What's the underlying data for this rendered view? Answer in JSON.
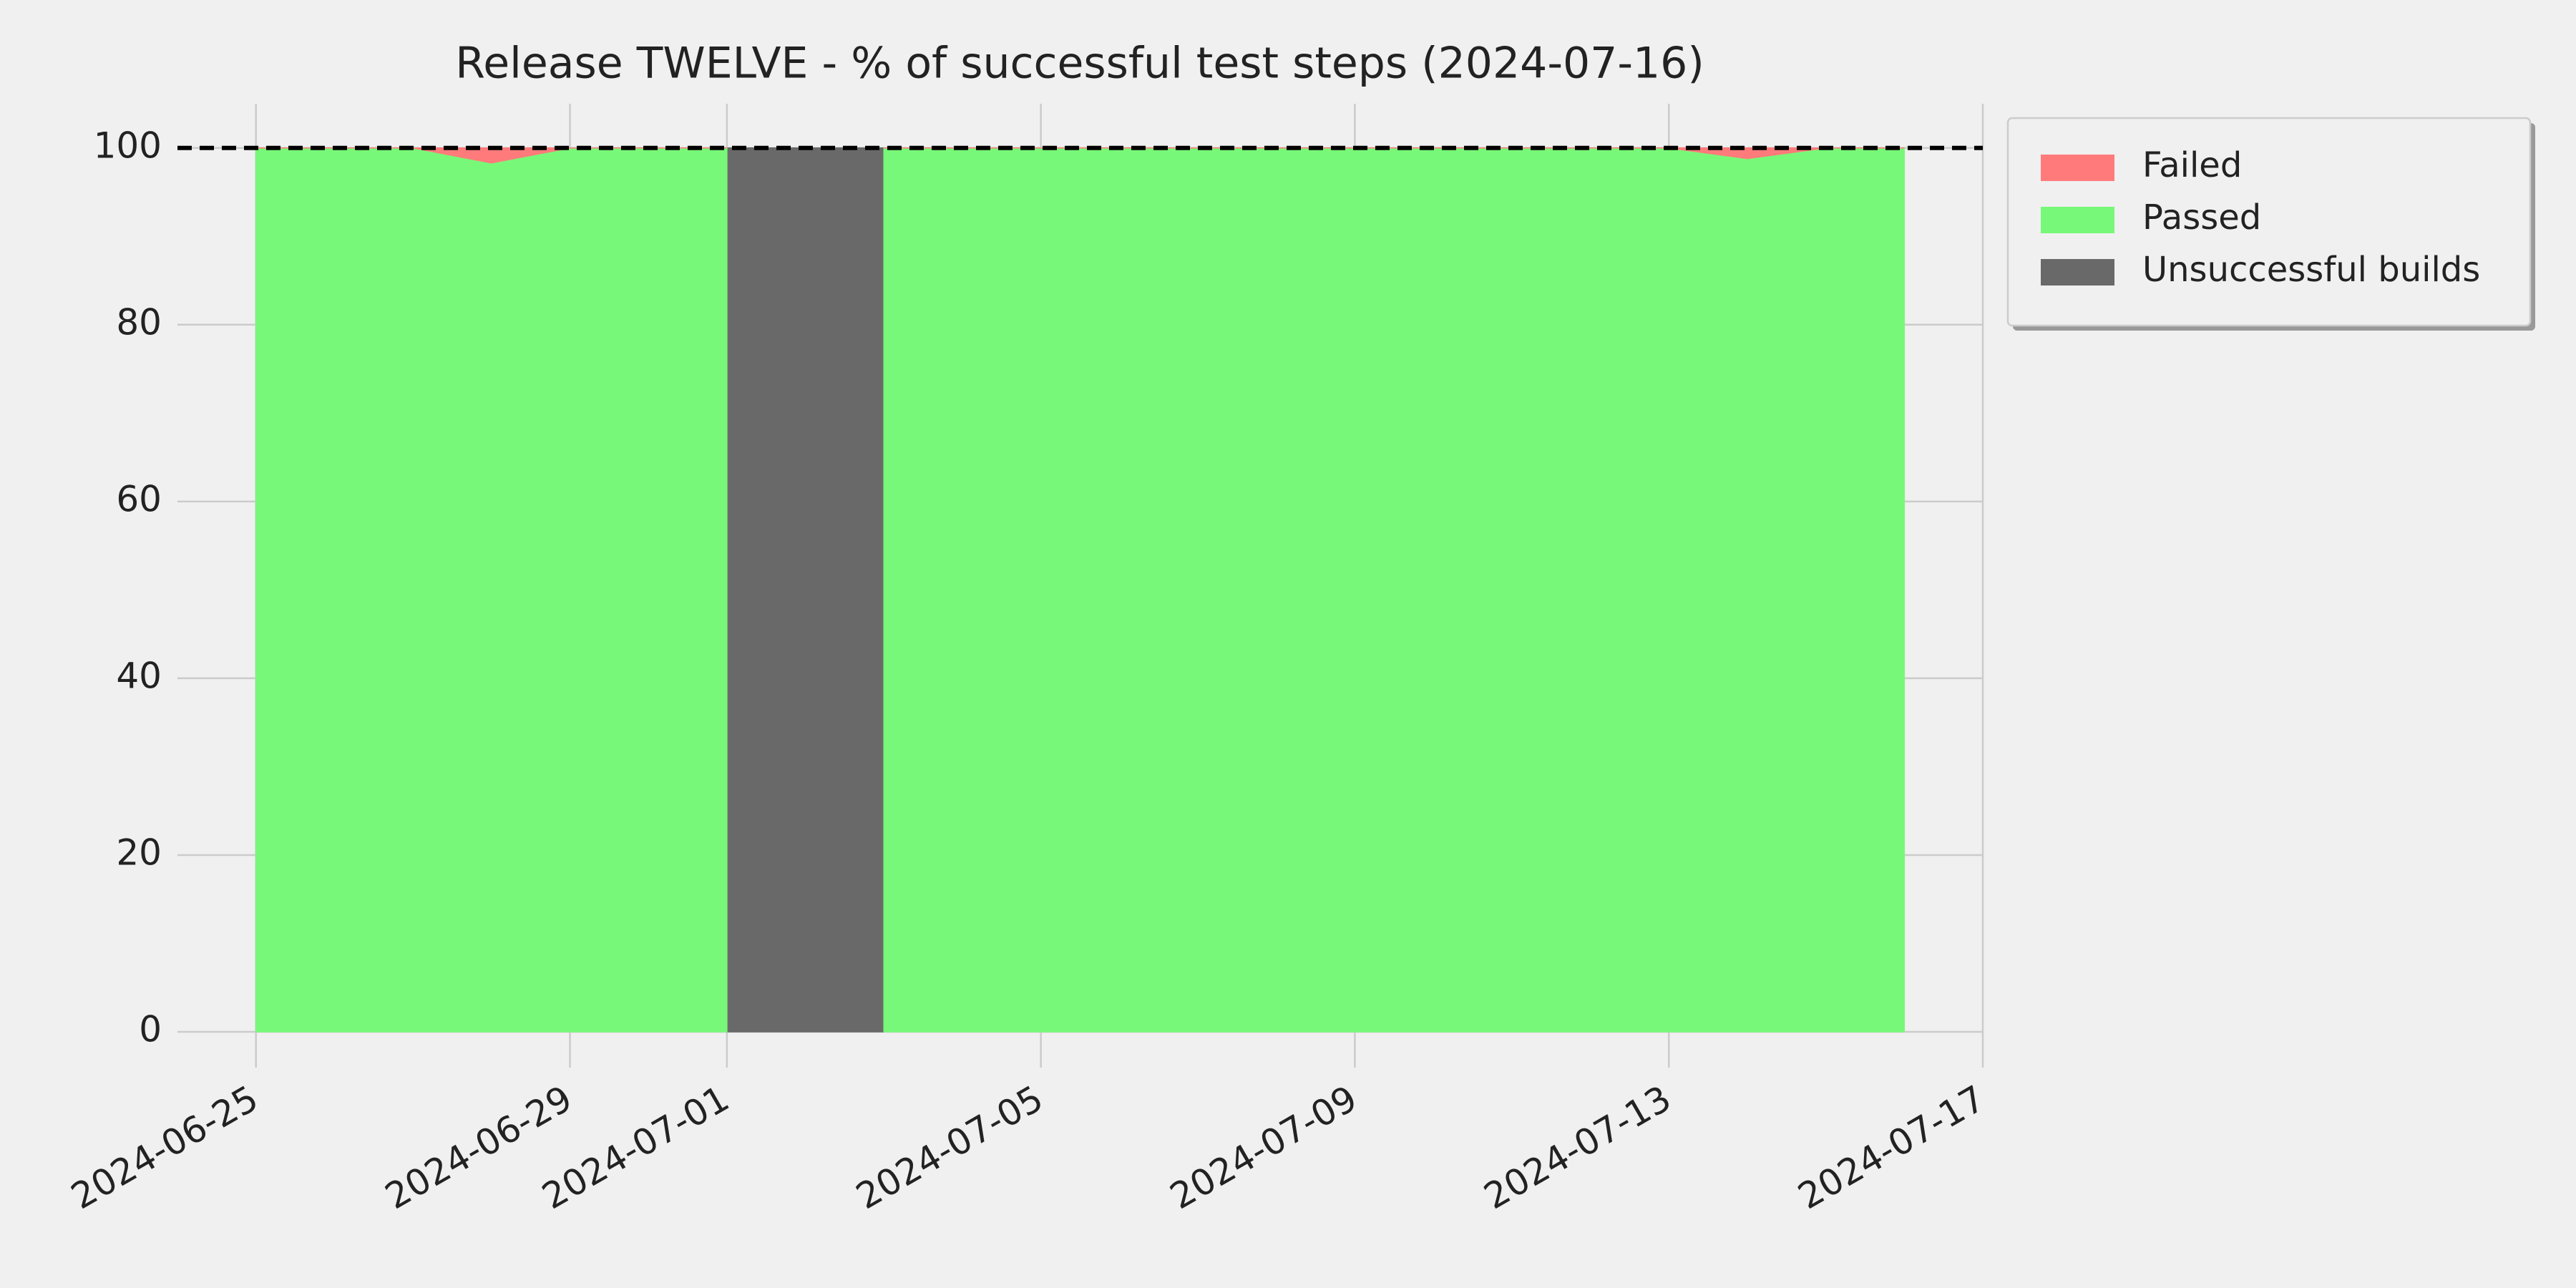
{
  "chart_data": {
    "type": "area",
    "title": "Release TWELVE - % of successful test steps (2024-07-16)",
    "x": [
      "2024-06-25",
      "2024-06-26",
      "2024-06-27",
      "2024-06-28",
      "2024-06-29",
      "2024-06-30",
      "2024-07-01",
      "2024-07-02",
      "2024-07-03",
      "2024-07-04",
      "2024-07-05",
      "2024-07-06",
      "2024-07-07",
      "2024-07-08",
      "2024-07-09",
      "2024-07-10",
      "2024-07-11",
      "2024-07-12",
      "2024-07-13",
      "2024-07-14",
      "2024-07-15",
      "2024-07-16"
    ],
    "series": [
      {
        "name": "Failed",
        "color": "#ff7b7b",
        "stacked": true,
        "values": [
          0,
          0,
          0,
          1.7,
          0,
          0,
          0,
          null,
          0,
          0,
          0,
          0,
          0,
          0,
          0,
          0,
          0,
          0,
          0,
          1.2,
          0,
          0
        ]
      },
      {
        "name": "Passed",
        "color": "#78f878",
        "values": [
          100,
          100,
          100,
          98.3,
          100,
          100,
          100,
          null,
          100,
          100,
          100,
          100,
          100,
          100,
          100,
          100,
          100,
          100,
          100,
          98.8,
          100,
          100
        ]
      },
      {
        "name": "Unsuccessful builds",
        "color": "#696969",
        "values": [
          null,
          null,
          null,
          null,
          null,
          null,
          100,
          100,
          100,
          null,
          null,
          null,
          null,
          null,
          null,
          null,
          null,
          null,
          null,
          null,
          null,
          null
        ]
      }
    ],
    "xlim": [
      "2024-06-24",
      "2024-07-17"
    ],
    "xticks": [
      "2024-06-25",
      "2024-06-29",
      "2024-07-01",
      "2024-07-05",
      "2024-07-09",
      "2024-07-13",
      "2024-07-17"
    ],
    "ylim": [
      0,
      105
    ],
    "yticks": [
      0,
      20,
      40,
      60,
      80,
      100
    ],
    "reference_line": 100,
    "grid": true,
    "legend": "outside right"
  }
}
